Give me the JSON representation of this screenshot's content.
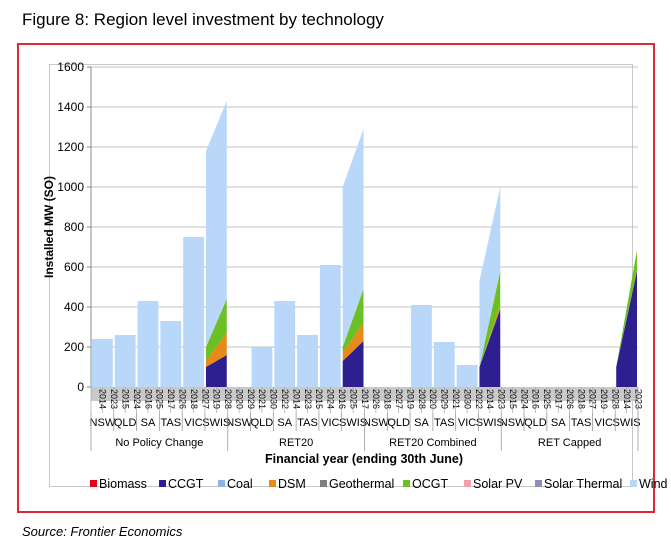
{
  "figure_title": "Figure 8: Region level investment by technology",
  "source": "Source: Frontier Economics",
  "colors": {
    "Biomass": "#e2001a",
    "CCGT": "#2d1f8f",
    "Coal": "#8eb4e3",
    "DSM": "#e8891c",
    "Geothermal": "#7f7f7f",
    "OCGT": "#6cc024",
    "Solar PV": "#f3a0a8",
    "Solar Thermal": "#8c8fb8",
    "Wind": "#b9d7f9",
    "frame": "#e0263a",
    "grid": "#c0c0c0"
  },
  "chart_data": {
    "type": "area",
    "stacked": true,
    "title": "",
    "ylabel": "Installed MW (SO)",
    "xlabel": "Financial year (ending 30th June)",
    "ylim": [
      0,
      1600
    ],
    "yticks": [
      0,
      200,
      400,
      600,
      800,
      1000,
      1200,
      1400,
      1600
    ],
    "grid": true,
    "legend_position": "bottom",
    "legend": [
      "Biomass",
      "CCGT",
      "Coal",
      "DSM",
      "Geothermal",
      "OCGT",
      "Solar PV",
      "Solar Thermal",
      "Wind"
    ],
    "x_tick_labels": [
      "2014",
      "2023",
      "2015",
      "2024",
      "2016",
      "2025",
      "2017",
      "2026",
      "2018",
      "2027",
      "2019",
      "2028",
      "2020",
      "2029",
      "2021",
      "2030",
      "2022",
      "2014",
      "2023",
      "2015",
      "2024",
      "2016",
      "2025",
      "2017",
      "2026",
      "2018",
      "2027",
      "2019",
      "2028",
      "2020",
      "2029",
      "2021",
      "2030",
      "2022",
      "2014",
      "2023",
      "2015",
      "2024",
      "2016",
      "2025",
      "2017",
      "2026",
      "2018",
      "2027",
      "2019",
      "2028"
    ],
    "scenarios": [
      {
        "name": "No Policy Change",
        "regions": [
          {
            "name": "NSW",
            "Wind": [
              240,
              240
            ],
            "CCGT": [
              0,
              0
            ],
            "DSM": [
              0,
              0
            ],
            "OCGT": [
              0,
              0
            ]
          },
          {
            "name": "QLD",
            "Wind": [
              260,
              260
            ],
            "CCGT": [
              0,
              0
            ],
            "DSM": [
              0,
              0
            ],
            "OCGT": [
              0,
              0
            ]
          },
          {
            "name": "SA",
            "Wind": [
              430,
              430
            ],
            "CCGT": [
              0,
              0
            ],
            "DSM": [
              0,
              0
            ],
            "OCGT": [
              0,
              0
            ]
          },
          {
            "name": "TAS",
            "Wind": [
              330,
              330
            ],
            "CCGT": [
              0,
              0
            ],
            "DSM": [
              0,
              0
            ],
            "OCGT": [
              0,
              0
            ]
          },
          {
            "name": "VIC",
            "Wind": [
              750,
              750
            ],
            "CCGT": [
              0,
              0
            ],
            "DSM": [
              0,
              0
            ],
            "OCGT": [
              0,
              0
            ]
          },
          {
            "name": "SWIS",
            "Wind": [
              980,
              990
            ],
            "CCGT": [
              100,
              160
            ],
            "DSM": [
              30,
              110
            ],
            "OCGT": [
              70,
              170
            ]
          }
        ]
      },
      {
        "name": "RET20",
        "regions": [
          {
            "name": "NSW",
            "Wind": [
              0,
              0
            ],
            "CCGT": [
              0,
              0
            ],
            "DSM": [
              0,
              0
            ],
            "OCGT": [
              0,
              0
            ]
          },
          {
            "name": "QLD",
            "Wind": [
              200,
              200
            ],
            "CCGT": [
              0,
              0
            ],
            "DSM": [
              0,
              0
            ],
            "OCGT": [
              0,
              0
            ]
          },
          {
            "name": "SA",
            "Wind": [
              430,
              430
            ],
            "CCGT": [
              0,
              0
            ],
            "DSM": [
              0,
              0
            ],
            "OCGT": [
              0,
              0
            ]
          },
          {
            "name": "TAS",
            "Wind": [
              260,
              260
            ],
            "CCGT": [
              0,
              0
            ],
            "DSM": [
              0,
              0
            ],
            "OCGT": [
              0,
              0
            ]
          },
          {
            "name": "VIC",
            "Wind": [
              610,
              610
            ],
            "CCGT": [
              0,
              0
            ],
            "DSM": [
              0,
              0
            ],
            "OCGT": [
              0,
              0
            ]
          },
          {
            "name": "SWIS",
            "Wind": [
              800,
              800
            ],
            "CCGT": [
              130,
              230
            ],
            "DSM": [
              40,
              90
            ],
            "OCGT": [
              30,
              170
            ]
          }
        ]
      },
      {
        "name": "RET20 Combined",
        "regions": [
          {
            "name": "NSW",
            "Wind": [
              0,
              0
            ],
            "CCGT": [
              0,
              0
            ],
            "DSM": [
              0,
              0
            ],
            "OCGT": [
              0,
              0
            ]
          },
          {
            "name": "QLD",
            "Wind": [
              0,
              0
            ],
            "CCGT": [
              0,
              0
            ],
            "DSM": [
              0,
              0
            ],
            "OCGT": [
              0,
              0
            ]
          },
          {
            "name": "SA",
            "Wind": [
              410,
              410
            ],
            "CCGT": [
              0,
              0
            ],
            "DSM": [
              0,
              0
            ],
            "OCGT": [
              0,
              0
            ]
          },
          {
            "name": "TAS",
            "Wind": [
              225,
              225
            ],
            "CCGT": [
              0,
              0
            ],
            "DSM": [
              0,
              0
            ],
            "OCGT": [
              0,
              0
            ]
          },
          {
            "name": "VIC",
            "Wind": [
              110,
              110
            ],
            "CCGT": [
              0,
              0
            ],
            "DSM": [
              0,
              0
            ],
            "OCGT": [
              0,
              0
            ]
          },
          {
            "name": "SWIS",
            "Wind": [
              430,
              420
            ],
            "CCGT": [
              100,
              390
            ],
            "DSM": [
              0,
              20
            ],
            "OCGT": [
              0,
              170
            ]
          }
        ]
      },
      {
        "name": "RET Capped",
        "regions": [
          {
            "name": "NSW",
            "Wind": [
              0,
              0
            ],
            "CCGT": [
              0,
              0
            ],
            "DSM": [
              0,
              0
            ],
            "OCGT": [
              0,
              0
            ]
          },
          {
            "name": "QLD",
            "Wind": [
              0,
              0
            ],
            "CCGT": [
              0,
              0
            ],
            "DSM": [
              0,
              0
            ],
            "OCGT": [
              0,
              0
            ]
          },
          {
            "name": "SA",
            "Wind": [
              0,
              0
            ],
            "CCGT": [
              0,
              0
            ],
            "DSM": [
              0,
              0
            ],
            "OCGT": [
              0,
              0
            ]
          },
          {
            "name": "TAS",
            "Wind": [
              0,
              0
            ],
            "CCGT": [
              0,
              0
            ],
            "DSM": [
              0,
              0
            ],
            "OCGT": [
              0,
              0
            ]
          },
          {
            "name": "VIC",
            "Wind": [
              0,
              0
            ],
            "CCGT": [
              0,
              0
            ],
            "DSM": [
              0,
              0
            ],
            "OCGT": [
              0,
              0
            ]
          },
          {
            "name": "SWIS",
            "Wind": [
              0,
              0
            ],
            "CCGT": [
              100,
              580
            ],
            "DSM": [
              0,
              5
            ],
            "OCGT": [
              0,
              100
            ]
          }
        ]
      }
    ]
  }
}
